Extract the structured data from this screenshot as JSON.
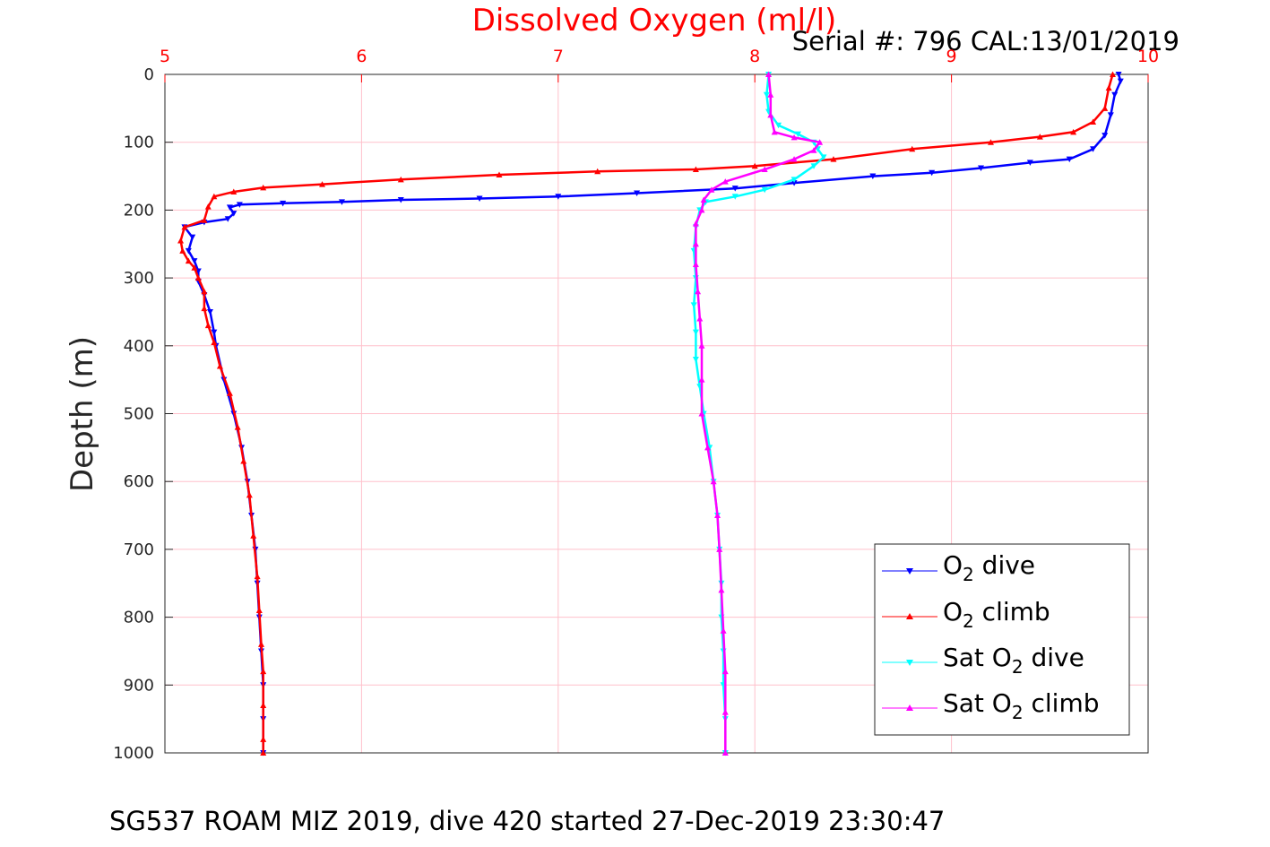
{
  "header": {
    "serial": "Serial #: 796  CAL:13/01/2019"
  },
  "caption": "SG537 ROAM MIZ 2019, dive 420 started 27-Dec-2019 23:30:47",
  "colors": {
    "o2_dive": "#0000ff",
    "o2_climb": "#ff0000",
    "sat_dive": "#00ffff",
    "sat_climb": "#ff00ff",
    "grid": "#ffc0cb",
    "x_axis": "#ff0000"
  },
  "legend": {
    "o2_dive": {
      "pre": "O",
      "sub": "2",
      "post": " dive"
    },
    "o2_climb": {
      "pre": "O",
      "sub": "2",
      "post": " climb"
    },
    "sat_dive": {
      "pre": "Sat O",
      "sub": "2",
      "post": " dive"
    },
    "sat_climb": {
      "pre": "Sat O",
      "sub": "2",
      "post": " climb"
    },
    "placement": "bottom-right"
  },
  "chart_data": {
    "type": "line",
    "title": "Dissolved Oxygen (ml/l)",
    "xlabel": "Dissolved Oxygen (ml/l)",
    "ylabel": "Depth (m)",
    "xlim": [
      5,
      10
    ],
    "ylim": [
      1000,
      0
    ],
    "x_axis_location": "top",
    "y_reversed": true,
    "grid": true,
    "xticks": [
      "5",
      "6",
      "7",
      "8",
      "9",
      "10"
    ],
    "yticks": [
      "0",
      "100",
      "200",
      "300",
      "400",
      "500",
      "600",
      "700",
      "800",
      "900",
      "1000"
    ],
    "series": [
      {
        "name": "O2 dive",
        "color": "#0000ff",
        "marker": "triangle-down",
        "points": [
          [
            9.85,
            0
          ],
          [
            9.86,
            10
          ],
          [
            9.83,
            30
          ],
          [
            9.81,
            60
          ],
          [
            9.78,
            90
          ],
          [
            9.72,
            110
          ],
          [
            9.6,
            125
          ],
          [
            9.4,
            130
          ],
          [
            9.15,
            138
          ],
          [
            8.9,
            145
          ],
          [
            8.6,
            150
          ],
          [
            8.2,
            160
          ],
          [
            7.9,
            168
          ],
          [
            7.4,
            175
          ],
          [
            7.0,
            180
          ],
          [
            6.6,
            183
          ],
          [
            6.2,
            185
          ],
          [
            5.9,
            188
          ],
          [
            5.6,
            190
          ],
          [
            5.38,
            192
          ],
          [
            5.33,
            196
          ],
          [
            5.35,
            205
          ],
          [
            5.32,
            213
          ],
          [
            5.2,
            218
          ],
          [
            5.1,
            225
          ],
          [
            5.14,
            240
          ],
          [
            5.12,
            260
          ],
          [
            5.15,
            275
          ],
          [
            5.17,
            290
          ],
          [
            5.17,
            305
          ],
          [
            5.2,
            325
          ],
          [
            5.23,
            350
          ],
          [
            5.25,
            380
          ],
          [
            5.26,
            400
          ],
          [
            5.3,
            450
          ],
          [
            5.35,
            500
          ],
          [
            5.39,
            550
          ],
          [
            5.42,
            600
          ],
          [
            5.44,
            650
          ],
          [
            5.46,
            700
          ],
          [
            5.47,
            750
          ],
          [
            5.48,
            800
          ],
          [
            5.49,
            850
          ],
          [
            5.5,
            900
          ],
          [
            5.5,
            950
          ],
          [
            5.5,
            1000
          ]
        ]
      },
      {
        "name": "O2 climb",
        "color": "#ff0000",
        "marker": "triangle-up",
        "points": [
          [
            9.82,
            0
          ],
          [
            9.8,
            20
          ],
          [
            9.78,
            50
          ],
          [
            9.72,
            70
          ],
          [
            9.62,
            85
          ],
          [
            9.45,
            92
          ],
          [
            9.2,
            100
          ],
          [
            8.8,
            110
          ],
          [
            8.4,
            125
          ],
          [
            8.0,
            135
          ],
          [
            7.7,
            140
          ],
          [
            7.2,
            143
          ],
          [
            6.7,
            148
          ],
          [
            6.2,
            155
          ],
          [
            5.8,
            162
          ],
          [
            5.5,
            167
          ],
          [
            5.35,
            173
          ],
          [
            5.25,
            180
          ],
          [
            5.22,
            195
          ],
          [
            5.2,
            215
          ],
          [
            5.1,
            225
          ],
          [
            5.08,
            245
          ],
          [
            5.09,
            260
          ],
          [
            5.12,
            275
          ],
          [
            5.15,
            285
          ],
          [
            5.17,
            300
          ],
          [
            5.2,
            320
          ],
          [
            5.2,
            345
          ],
          [
            5.22,
            370
          ],
          [
            5.25,
            395
          ],
          [
            5.28,
            430
          ],
          [
            5.33,
            470
          ],
          [
            5.37,
            520
          ],
          [
            5.4,
            570
          ],
          [
            5.43,
            620
          ],
          [
            5.45,
            680
          ],
          [
            5.47,
            740
          ],
          [
            5.48,
            790
          ],
          [
            5.49,
            840
          ],
          [
            5.5,
            880
          ],
          [
            5.5,
            930
          ],
          [
            5.5,
            980
          ],
          [
            5.5,
            1000
          ]
        ]
      },
      {
        "name": "Sat O2 dive",
        "color": "#00ffff",
        "marker": "triangle-down",
        "points": [
          [
            8.07,
            0
          ],
          [
            8.06,
            30
          ],
          [
            8.07,
            55
          ],
          [
            8.12,
            75
          ],
          [
            8.22,
            88
          ],
          [
            8.3,
            100
          ],
          [
            8.32,
            110
          ],
          [
            8.35,
            122
          ],
          [
            8.3,
            135
          ],
          [
            8.2,
            155
          ],
          [
            8.05,
            170
          ],
          [
            7.9,
            180
          ],
          [
            7.75,
            188
          ],
          [
            7.72,
            200
          ],
          [
            7.7,
            225
          ],
          [
            7.69,
            260
          ],
          [
            7.7,
            300
          ],
          [
            7.69,
            340
          ],
          [
            7.7,
            380
          ],
          [
            7.7,
            420
          ],
          [
            7.72,
            460
          ],
          [
            7.74,
            500
          ],
          [
            7.77,
            550
          ],
          [
            7.79,
            600
          ],
          [
            7.81,
            650
          ],
          [
            7.82,
            700
          ],
          [
            7.83,
            750
          ],
          [
            7.83,
            800
          ],
          [
            7.84,
            850
          ],
          [
            7.84,
            900
          ],
          [
            7.85,
            950
          ],
          [
            7.85,
            1000
          ]
        ]
      },
      {
        "name": "Sat O2 climb",
        "color": "#ff00ff",
        "marker": "triangle-up",
        "points": [
          [
            8.07,
            0
          ],
          [
            8.08,
            30
          ],
          [
            8.08,
            60
          ],
          [
            8.1,
            85
          ],
          [
            8.2,
            93
          ],
          [
            8.33,
            100
          ],
          [
            8.3,
            112
          ],
          [
            8.2,
            125
          ],
          [
            8.05,
            140
          ],
          [
            7.85,
            158
          ],
          [
            7.78,
            170
          ],
          [
            7.74,
            185
          ],
          [
            7.73,
            200
          ],
          [
            7.7,
            220
          ],
          [
            7.7,
            250
          ],
          [
            7.7,
            280
          ],
          [
            7.71,
            320
          ],
          [
            7.72,
            360
          ],
          [
            7.73,
            400
          ],
          [
            7.73,
            450
          ],
          [
            7.73,
            500
          ],
          [
            7.76,
            550
          ],
          [
            7.79,
            600
          ],
          [
            7.81,
            650
          ],
          [
            7.82,
            700
          ],
          [
            7.83,
            760
          ],
          [
            7.84,
            820
          ],
          [
            7.85,
            880
          ],
          [
            7.85,
            940
          ],
          [
            7.85,
            1000
          ]
        ]
      }
    ]
  }
}
